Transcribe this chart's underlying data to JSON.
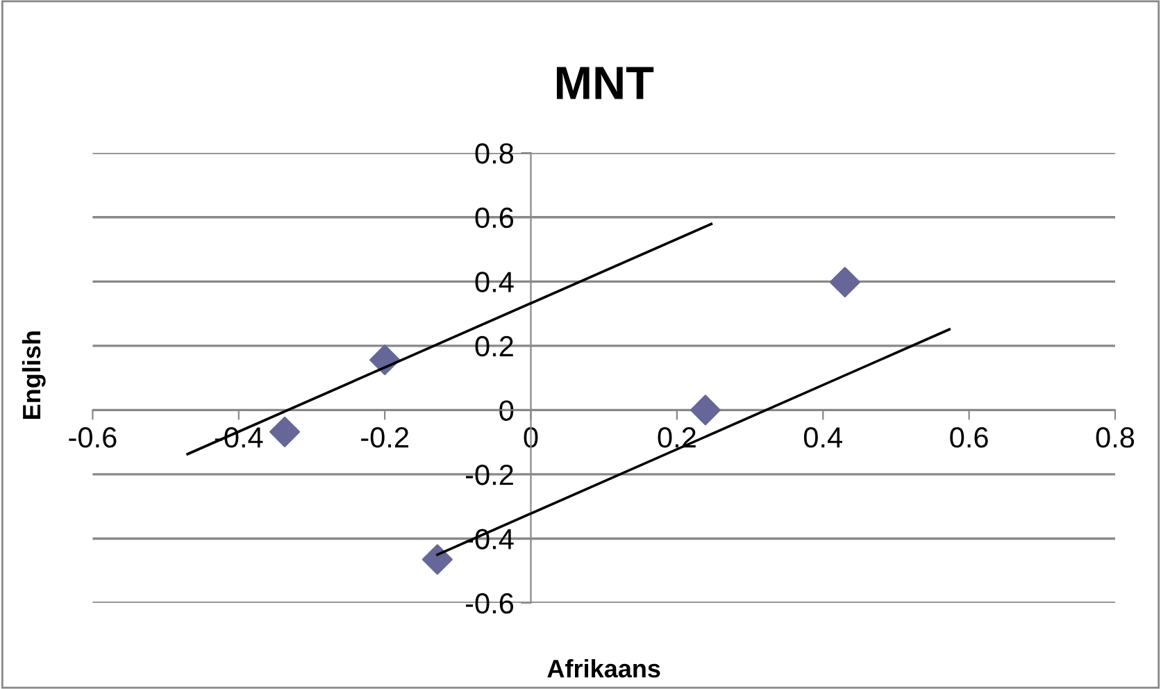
{
  "chart_data": {
    "type": "scatter",
    "title": "MNT",
    "xlabel": "Afrikaans",
    "ylabel": "English",
    "xlim": [
      -0.6,
      0.8
    ],
    "ylim": [
      -0.6,
      0.8
    ],
    "xticks": [
      -0.6,
      -0.4,
      -0.2,
      0,
      0.2,
      0.4,
      0.6,
      0.8
    ],
    "yticks": [
      -0.6,
      -0.4,
      -0.2,
      0,
      0.2,
      0.4,
      0.6,
      0.8
    ],
    "grid": "y",
    "marker": "diamond",
    "series": [
      {
        "color": "#666699",
        "x": [
          -0.337,
          -0.2,
          -0.128,
          0.239,
          0.43
        ],
        "values": [
          -0.068,
          0.156,
          -0.465,
          0.0,
          0.398
        ]
      },
      {
        "type": "line",
        "color": "#000000",
        "marker": "none",
        "line_style": "solid",
        "x": [
          -0.47,
          0.247
        ],
        "values": [
          -0.137,
          0.579
        ]
      },
      {
        "type": "line",
        "color": "#000000",
        "marker": "none",
        "line_style": "solid",
        "x": [
          -0.128,
          0.573
        ],
        "values": [
          -0.45,
          0.251
        ]
      }
    ]
  }
}
